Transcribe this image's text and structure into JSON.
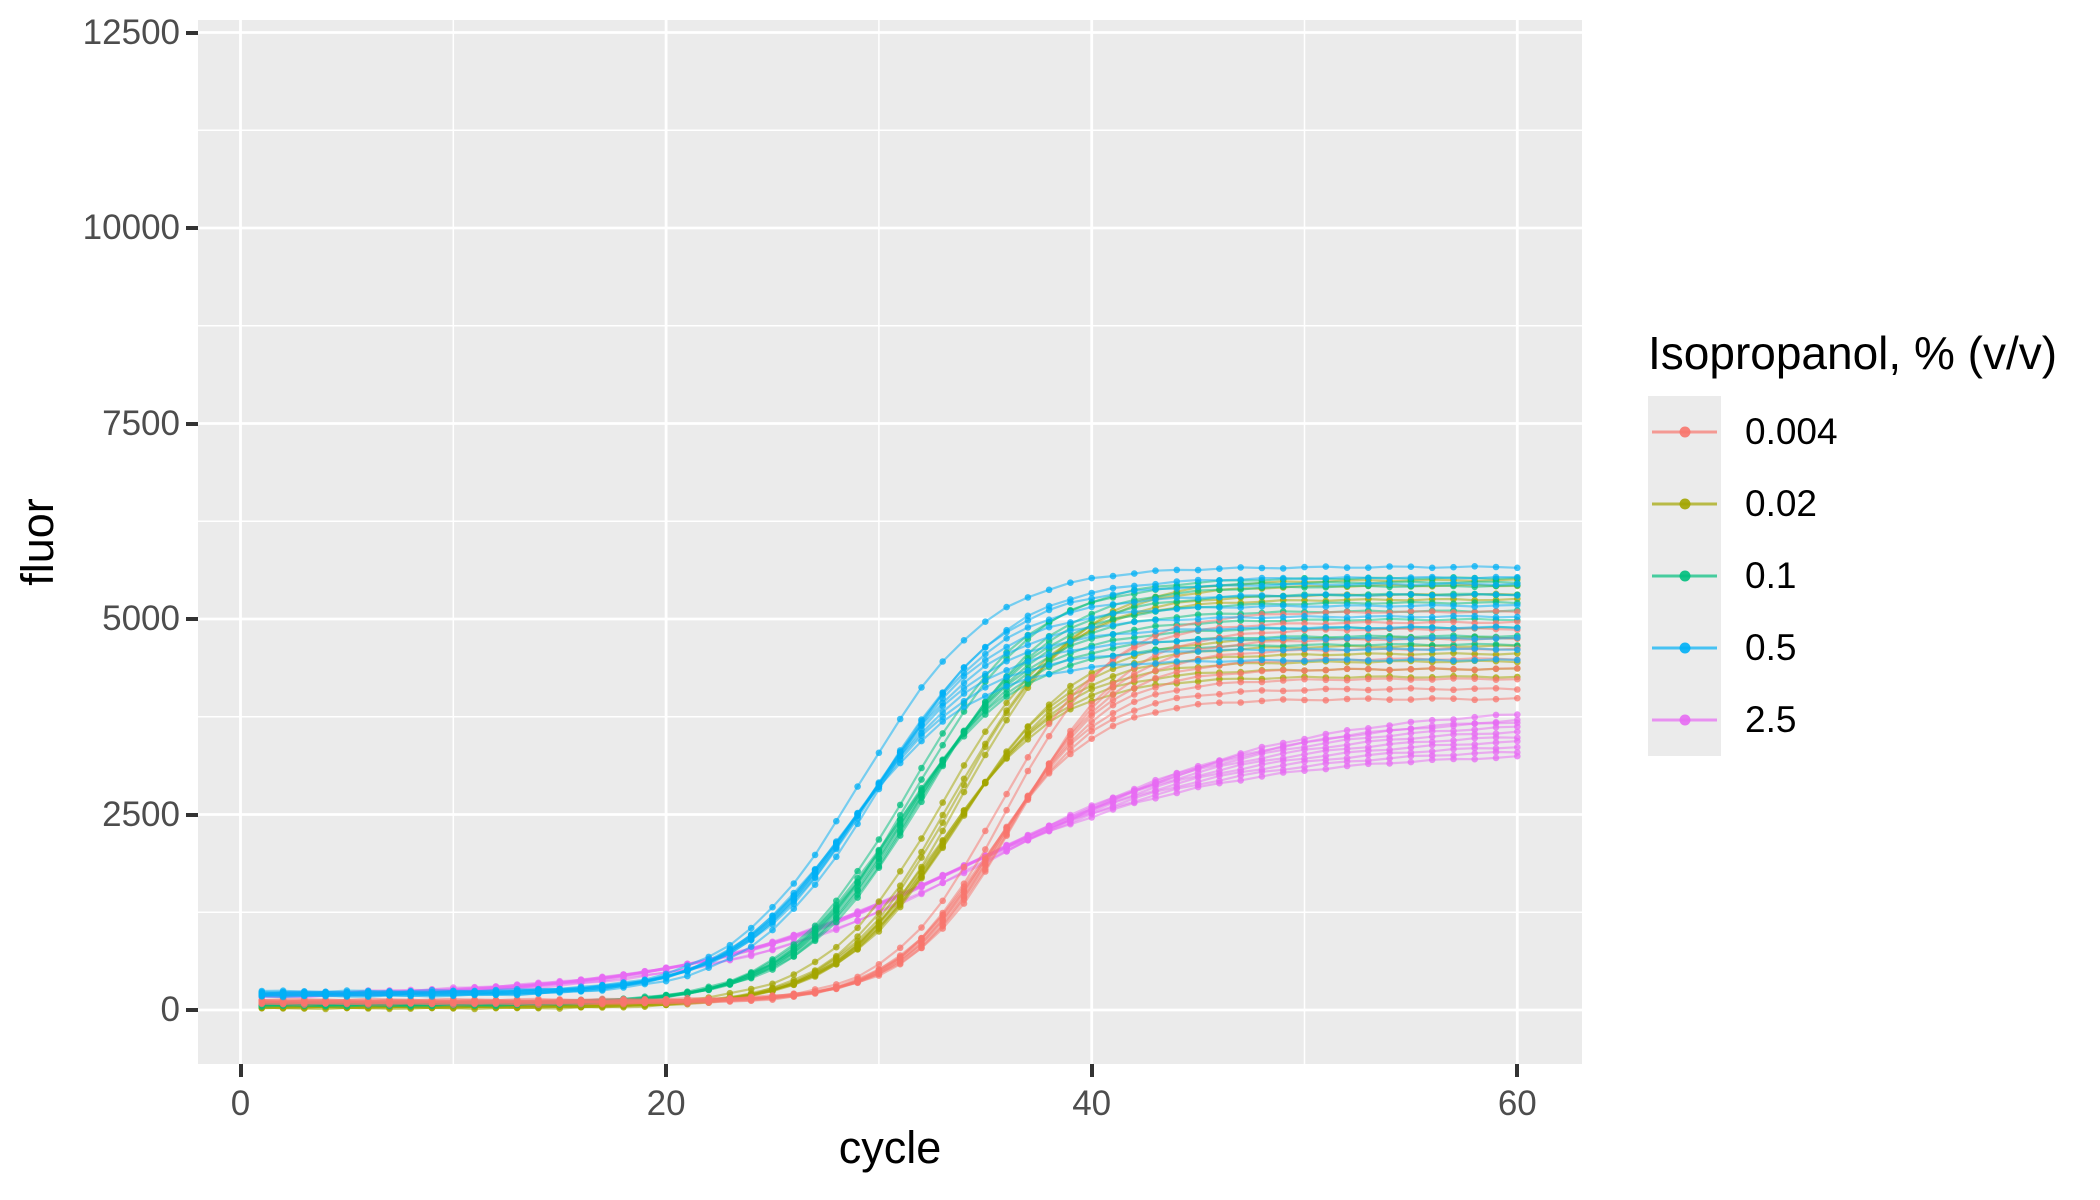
{
  "chart_data": {
    "type": "line",
    "title": "",
    "xlabel": "cycle",
    "ylabel": "fluor",
    "legend_title": "Isopropanol, % (v/v)",
    "legend_position": "right",
    "grid": true,
    "panel_bg": "#EBEBEB",
    "grid_color": "#FFFFFF",
    "tick_color": "#333333",
    "tick_label_color": "#4d4d4d",
    "x_tick_labels": [
      "0",
      "20",
      "40",
      "60"
    ],
    "y_tick_labels": [
      "0",
      "2500",
      "5000",
      "7500",
      "10000",
      "12500"
    ],
    "x_major": [
      0,
      20,
      40,
      60
    ],
    "x_minor": [
      10,
      30,
      50
    ],
    "y_major": [
      0,
      2500,
      5000,
      7500,
      10000,
      12500
    ],
    "y_minor": [
      1250,
      3750,
      6250,
      8750,
      11250
    ],
    "xlim": [
      -2,
      63
    ],
    "ylim": [
      -690,
      12660
    ],
    "cycle_min": 1,
    "cycle_max": 60,
    "curve_model": "value = baseline + offset + amplitude / (1 + exp(-k*(cycle - midpoint))) + noise",
    "noise_amplitude": 10,
    "line_width": 2.2,
    "line_alpha": 0.5,
    "point_radius": 3.3,
    "point_alpha": 0.75,
    "draw_order": [
      4,
      1,
      2,
      0,
      3
    ],
    "series": [
      {
        "name": "0.004",
        "color": "#F8766D",
        "k": 0.4,
        "baseline": 105,
        "replicates": [
          {
            "mid": 35.2,
            "amp": 3900,
            "off": -28
          },
          {
            "mid": 35.4,
            "amp": 4020,
            "off": -20
          },
          {
            "mid": 35.6,
            "amp": 4140,
            "off": -12
          },
          {
            "mid": 35.8,
            "amp": 4260,
            "off": -4
          },
          {
            "mid": 36.0,
            "amp": 4380,
            "off": 4
          },
          {
            "mid": 36.2,
            "amp": 4500,
            "off": 12
          },
          {
            "mid": 36.4,
            "amp": 4620,
            "off": 20
          },
          {
            "mid": 36.6,
            "amp": 4740,
            "off": 28
          },
          {
            "mid": 35.5,
            "amp": 4860,
            "off": -8
          },
          {
            "mid": 36.1,
            "amp": 4980,
            "off": 8
          }
        ]
      },
      {
        "name": "0.02",
        "color": "#A3A500",
        "k": 0.36,
        "baseline": 45,
        "replicates": [
          {
            "mid": 32.9,
            "amp": 4240,
            "off": -24
          },
          {
            "mid": 33.1,
            "amp": 4330,
            "off": -16
          },
          {
            "mid": 33.3,
            "amp": 4420,
            "off": -8
          },
          {
            "mid": 33.5,
            "amp": 4510,
            "off": 0
          },
          {
            "mid": 33.6,
            "amp": 4600,
            "off": 8
          },
          {
            "mid": 33.8,
            "amp": 4700,
            "off": 16
          },
          {
            "mid": 33.0,
            "amp": 5180,
            "off": 24
          },
          {
            "mid": 33.4,
            "amp": 5280,
            "off": -12
          },
          {
            "mid": 33.7,
            "amp": 5380,
            "off": 4
          },
          {
            "mid": 34.0,
            "amp": 5440,
            "off": 12
          }
        ]
      },
      {
        "name": "0.1",
        "color": "#00BF7D",
        "k": 0.34,
        "baseline": 75,
        "replicates": [
          {
            "mid": 30.8,
            "amp": 4620,
            "off": -22
          },
          {
            "mid": 31.0,
            "amp": 4720,
            "off": -15
          },
          {
            "mid": 31.2,
            "amp": 4820,
            "off": -8
          },
          {
            "mid": 31.4,
            "amp": 4920,
            "off": -1
          },
          {
            "mid": 31.6,
            "amp": 5020,
            "off": 6
          },
          {
            "mid": 31.8,
            "amp": 5120,
            "off": 13
          },
          {
            "mid": 32.0,
            "amp": 5220,
            "off": 20
          },
          {
            "mid": 32.2,
            "amp": 5320,
            "off": 27
          },
          {
            "mid": 31.3,
            "amp": 5400,
            "off": -5
          },
          {
            "mid": 31.7,
            "amp": 5440,
            "off": 9
          }
        ]
      },
      {
        "name": "0.5",
        "color": "#00B0F6",
        "k": 0.33,
        "baseline": 205,
        "replicates": [
          {
            "mid": 28.5,
            "amp": 4300,
            "off": -30
          },
          {
            "mid": 28.7,
            "amp": 4430,
            "off": -21
          },
          {
            "mid": 28.9,
            "amp": 4560,
            "off": -12
          },
          {
            "mid": 29.1,
            "amp": 4690,
            "off": -3
          },
          {
            "mid": 29.3,
            "amp": 4820,
            "off": 6
          },
          {
            "mid": 29.5,
            "amp": 4950,
            "off": 15
          },
          {
            "mid": 29.7,
            "amp": 5080,
            "off": 24
          },
          {
            "mid": 29.9,
            "amp": 5210,
            "off": 33
          },
          {
            "mid": 30.1,
            "amp": 5340,
            "off": -16
          },
          {
            "mid": 29.2,
            "amp": 5450,
            "off": 10
          }
        ]
      },
      {
        "name": "2.5",
        "color": "#E76BF3",
        "k": 0.15,
        "baseline": 165,
        "replicates": [
          {
            "mid": 33.0,
            "amp": 3150,
            "off": -26
          },
          {
            "mid": 33.3,
            "amp": 3210,
            "off": -18
          },
          {
            "mid": 33.6,
            "amp": 3270,
            "off": -10
          },
          {
            "mid": 33.9,
            "amp": 3330,
            "off": -2
          },
          {
            "mid": 34.2,
            "amp": 3390,
            "off": 6
          },
          {
            "mid": 34.5,
            "amp": 3450,
            "off": 14
          },
          {
            "mid": 34.8,
            "amp": 3510,
            "off": 22
          },
          {
            "mid": 35.1,
            "amp": 3570,
            "off": 30
          },
          {
            "mid": 35.5,
            "amp": 3640,
            "off": -14
          },
          {
            "mid": 36.0,
            "amp": 3700,
            "off": 12
          }
        ]
      }
    ]
  }
}
